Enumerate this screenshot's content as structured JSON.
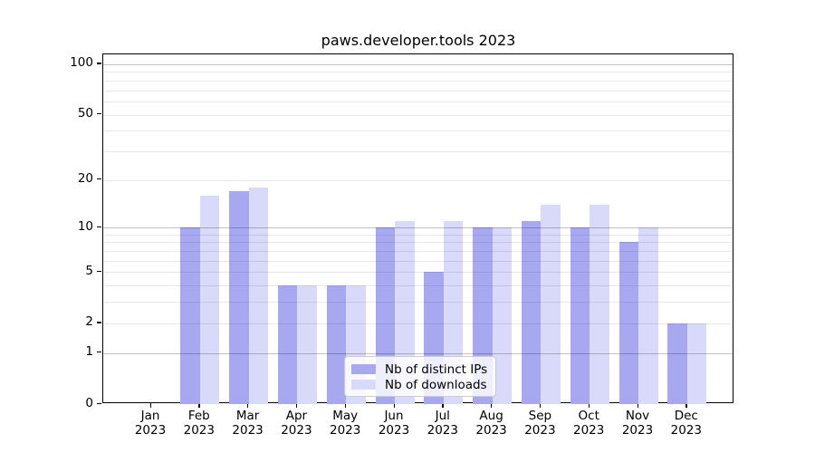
{
  "title": "paws.developer.tools 2023",
  "chart_data": {
    "type": "bar",
    "title": "paws.developer.tools 2023",
    "scale": "log1p",
    "grid": true,
    "legend_position": "lower-center",
    "xlabel": "",
    "ylabel": "",
    "ylim": [
      0,
      115
    ],
    "categories": [
      {
        "m": "Jan",
        "y": "2023"
      },
      {
        "m": "Feb",
        "y": "2023"
      },
      {
        "m": "Mar",
        "y": "2023"
      },
      {
        "m": "Apr",
        "y": "2023"
      },
      {
        "m": "May",
        "y": "2023"
      },
      {
        "m": "Jun",
        "y": "2023"
      },
      {
        "m": "Jul",
        "y": "2023"
      },
      {
        "m": "Aug",
        "y": "2023"
      },
      {
        "m": "Sep",
        "y": "2023"
      },
      {
        "m": "Oct",
        "y": "2023"
      },
      {
        "m": "Nov",
        "y": "2023"
      },
      {
        "m": "Dec",
        "y": "2023"
      }
    ],
    "series": [
      {
        "name": "Nb of distinct IPs",
        "color": "#a8a8f1",
        "values": [
          0,
          10,
          17,
          4,
          4,
          10,
          5,
          10,
          11,
          10,
          8,
          2
        ]
      },
      {
        "name": "Nb of downloads",
        "color": "#d9d9f9",
        "values": [
          0,
          16,
          18,
          4,
          4,
          11,
          11,
          10,
          14,
          14,
          10,
          2
        ]
      }
    ],
    "y_ticks": [
      100,
      50,
      20,
      10,
      5,
      2,
      1,
      0
    ],
    "y_gridlines_major": [
      1,
      10,
      100
    ],
    "y_gridlines_minor": [
      2,
      3,
      4,
      5,
      6,
      7,
      8,
      9,
      20,
      30,
      40,
      50,
      60,
      70,
      80,
      90
    ]
  }
}
